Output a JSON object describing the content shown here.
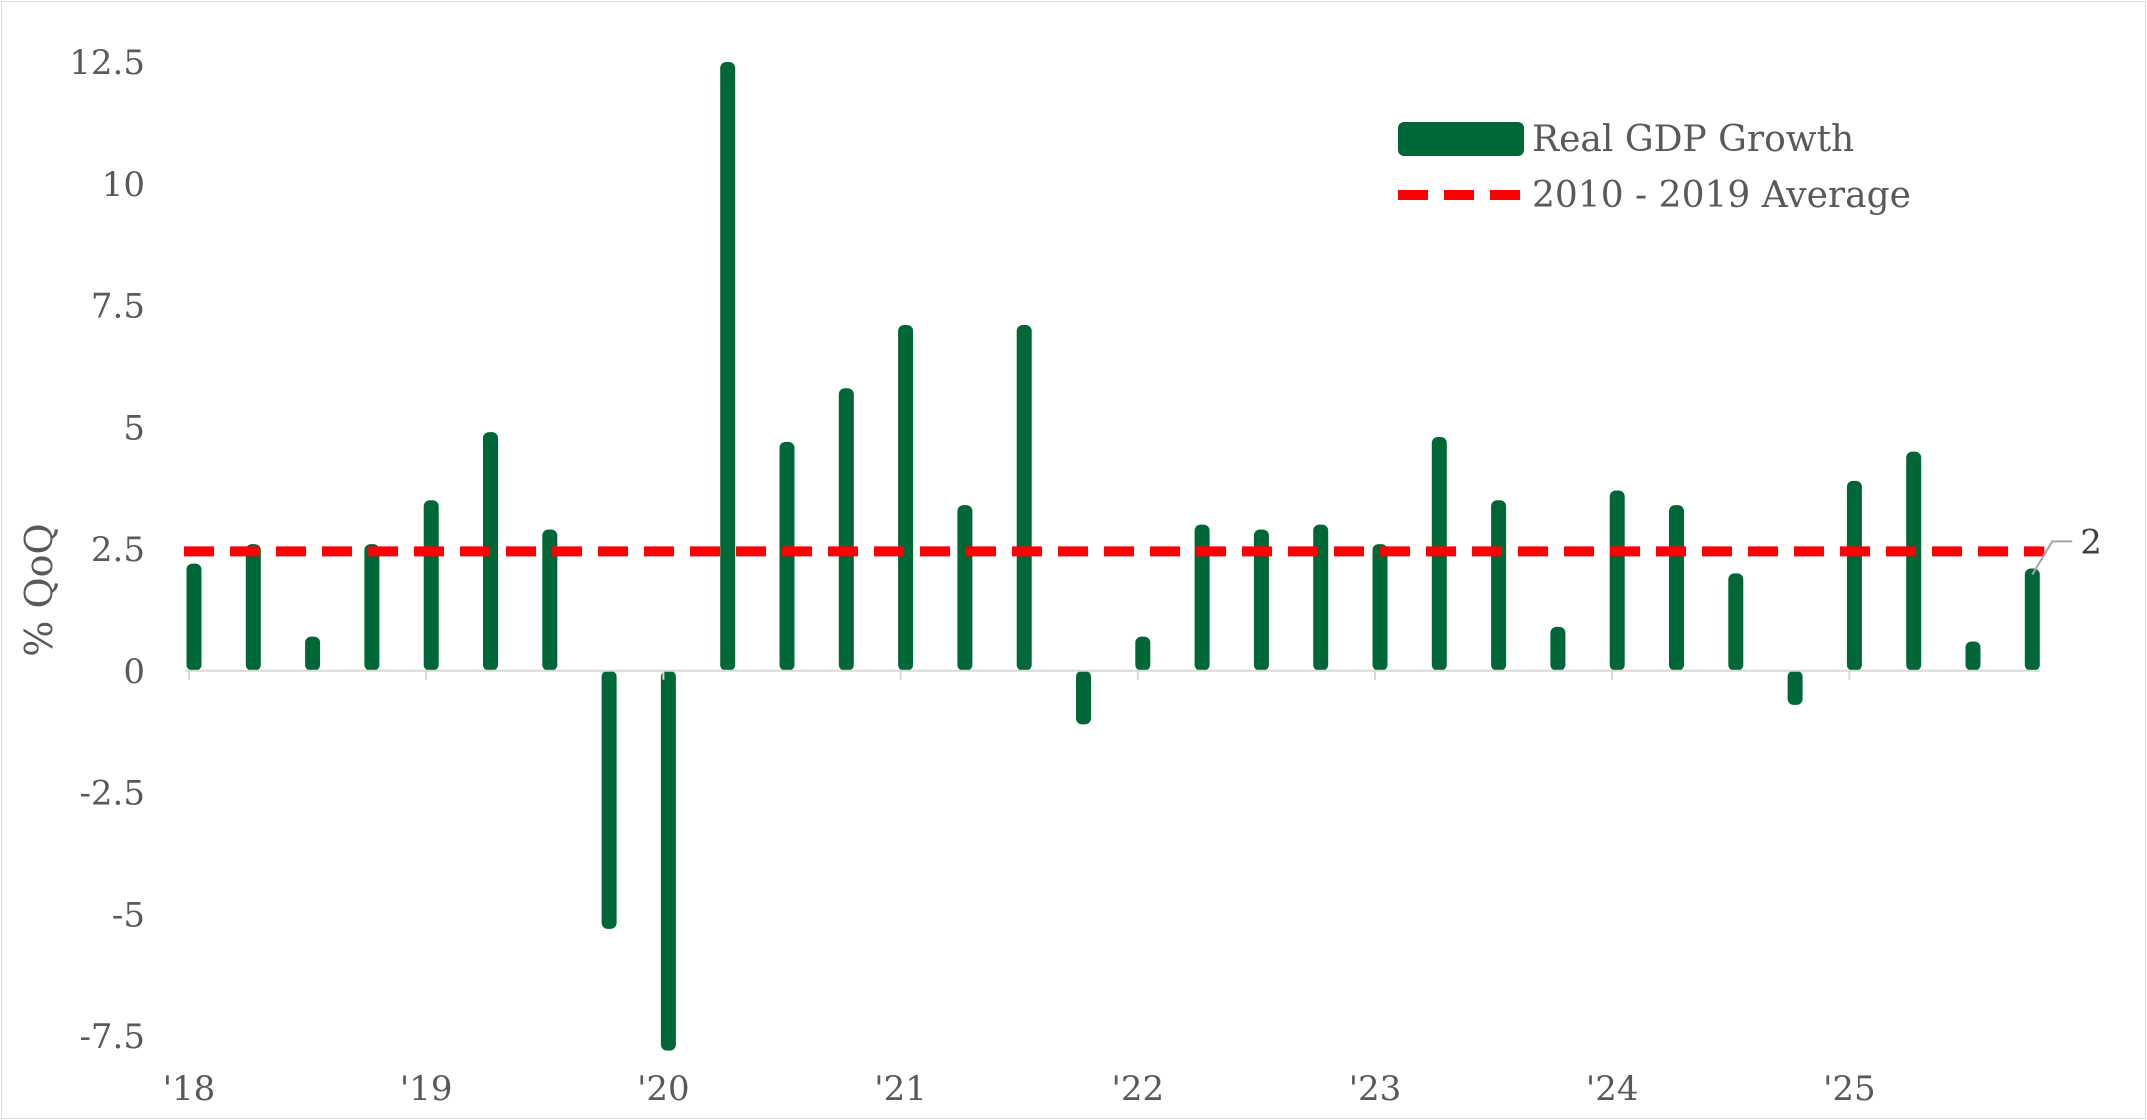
{
  "chart_data": {
    "type": "bar",
    "title": "",
    "xlabel": "",
    "ylabel": "% QoQ",
    "ylim": [
      -7.5,
      12.5
    ],
    "yticks": [
      "12.5",
      "10",
      "7.5",
      "5",
      "2.5",
      "0",
      "-2.5",
      "-5",
      "-7.5"
    ],
    "ytick_values": [
      12.5,
      10,
      7.5,
      5,
      2.5,
      0,
      -2.5,
      -5,
      -7.5
    ],
    "year_labels": [
      "'18",
      "'19",
      "'20",
      "'21",
      "'22",
      "'23",
      "'24",
      "'25"
    ],
    "year_start_index": [
      0,
      4,
      8,
      12,
      16,
      20,
      24,
      28
    ],
    "legend_position": "top-right",
    "series": [
      {
        "name": "Real GDP Growth",
        "kind": "bar",
        "color": "#006837",
        "values": [
          2.2,
          2.6,
          0.7,
          2.6,
          3.5,
          4.9,
          2.9,
          -5.3,
          -7.8,
          12.5,
          4.7,
          5.8,
          7.1,
          3.4,
          7.1,
          -1.1,
          0.7,
          3.0,
          2.9,
          3.0,
          2.6,
          4.8,
          3.5,
          0.9,
          3.7,
          3.4,
          2.0,
          -0.7,
          3.9,
          4.5,
          0.6,
          2.1
        ]
      },
      {
        "name": "2010 - 2019 Average",
        "kind": "line",
        "color": "#ff0000",
        "value": 2.45
      }
    ],
    "annotation": {
      "text": "2",
      "point_index": 31
    }
  }
}
